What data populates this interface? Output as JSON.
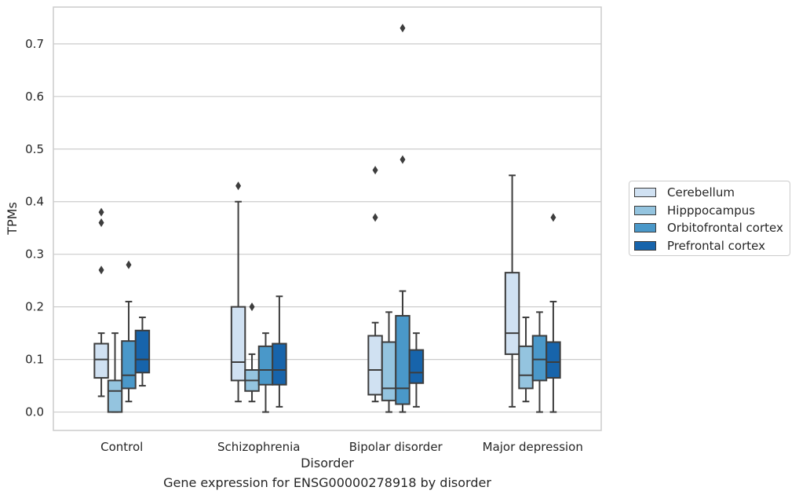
{
  "caption": "Gene expression for ENSG00000278918 by disorder",
  "chart_data": {
    "type": "box",
    "xlabel": "Disorder",
    "ylabel": "TPMs",
    "ylim": [
      -0.035,
      0.77
    ],
    "yticks": [
      0.0,
      0.1,
      0.2,
      0.3,
      0.4,
      0.5,
      0.6,
      0.7
    ],
    "ytick_labels": [
      "0.0",
      "0.1",
      "0.2",
      "0.3",
      "0.4",
      "0.5",
      "0.6",
      "0.7"
    ],
    "grid": "horizontal",
    "legend_position": "right",
    "categories": [
      "Control",
      "Schizophrenia",
      "Bipolar disorder",
      "Major depression"
    ],
    "series": [
      {
        "name": "Cerebellum",
        "color": "#d0e1f2",
        "boxes": [
          {
            "whislo": 0.03,
            "q1": 0.065,
            "med": 0.1,
            "q3": 0.13,
            "whishi": 0.15,
            "fliers": [
              0.27,
              0.36,
              0.38
            ]
          },
          {
            "whislo": 0.02,
            "q1": 0.06,
            "med": 0.095,
            "q3": 0.2,
            "whishi": 0.4,
            "fliers": [
              0.43
            ]
          },
          {
            "whislo": 0.02,
            "q1": 0.033,
            "med": 0.08,
            "q3": 0.145,
            "whishi": 0.17,
            "fliers": [
              0.37,
              0.46
            ]
          },
          {
            "whislo": 0.01,
            "q1": 0.11,
            "med": 0.15,
            "q3": 0.265,
            "whishi": 0.45,
            "fliers": []
          }
        ]
      },
      {
        "name": "Hipppocampus",
        "color": "#94c4df",
        "boxes": [
          {
            "whislo": 0.0,
            "q1": 0.0,
            "med": 0.04,
            "q3": 0.06,
            "whishi": 0.15,
            "fliers": []
          },
          {
            "whislo": 0.02,
            "q1": 0.04,
            "med": 0.06,
            "q3": 0.08,
            "whishi": 0.11,
            "fliers": [
              0.2
            ]
          },
          {
            "whislo": 0.0,
            "q1": 0.022,
            "med": 0.045,
            "q3": 0.133,
            "whishi": 0.19,
            "fliers": []
          },
          {
            "whislo": 0.02,
            "q1": 0.045,
            "med": 0.07,
            "q3": 0.125,
            "whishi": 0.18,
            "fliers": []
          }
        ]
      },
      {
        "name": "Orbitofrontal cortex",
        "color": "#4a98c9",
        "boxes": [
          {
            "whislo": 0.02,
            "q1": 0.045,
            "med": 0.07,
            "q3": 0.135,
            "whishi": 0.21,
            "fliers": [
              0.28
            ]
          },
          {
            "whislo": 0.0,
            "q1": 0.052,
            "med": 0.08,
            "q3": 0.125,
            "whishi": 0.15,
            "fliers": []
          },
          {
            "whislo": 0.0,
            "q1": 0.015,
            "med": 0.045,
            "q3": 0.183,
            "whishi": 0.23,
            "fliers": [
              0.48,
              0.73
            ]
          },
          {
            "whislo": 0.0,
            "q1": 0.06,
            "med": 0.1,
            "q3": 0.145,
            "whishi": 0.19,
            "fliers": []
          }
        ]
      },
      {
        "name": "Prefrontal cortex",
        "color": "#1764ab",
        "boxes": [
          {
            "whislo": 0.05,
            "q1": 0.075,
            "med": 0.1,
            "q3": 0.155,
            "whishi": 0.18,
            "fliers": []
          },
          {
            "whislo": 0.01,
            "q1": 0.052,
            "med": 0.08,
            "q3": 0.13,
            "whishi": 0.22,
            "fliers": []
          },
          {
            "whislo": 0.01,
            "q1": 0.055,
            "med": 0.075,
            "q3": 0.118,
            "whishi": 0.15,
            "fliers": []
          },
          {
            "whislo": 0.0,
            "q1": 0.065,
            "med": 0.095,
            "q3": 0.133,
            "whishi": 0.21,
            "fliers": [
              0.37
            ]
          }
        ]
      }
    ]
  }
}
